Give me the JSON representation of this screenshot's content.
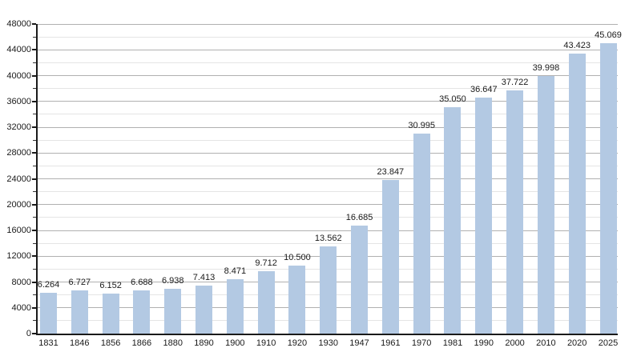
{
  "chart_data": {
    "type": "bar",
    "title": "",
    "xlabel": "",
    "ylabel": "",
    "categories": [
      "1831",
      "1846",
      "1856",
      "1866",
      "1880",
      "1890",
      "1900",
      "1910",
      "1920",
      "1930",
      "1947",
      "1961",
      "1970",
      "1981",
      "1990",
      "2000",
      "2010",
      "2020",
      "2025"
    ],
    "values": [
      6264,
      6727,
      6152,
      6688,
      6938,
      7413,
      8471,
      9712,
      10500,
      13562,
      16685,
      23847,
      30995,
      35050,
      36647,
      37722,
      39998,
      43423,
      45069
    ],
    "value_labels": [
      "6.264",
      "6.727",
      "6.152",
      "6.688",
      "6.938",
      "7.413",
      "8.471",
      "9.712",
      "10.500",
      "13.562",
      "16.685",
      "23.847",
      "30.995",
      "35.050",
      "36.647",
      "37.722",
      "39.998",
      "43.423",
      "45.069"
    ],
    "ylim": [
      0,
      48000
    ],
    "y_major_step": 4000,
    "y_minor_step": 2000,
    "y_tick_labels": [
      "0",
      "4000",
      "8000",
      "12000",
      "16000",
      "20000",
      "24000",
      "28000",
      "32000",
      "36000",
      "40000",
      "44000",
      "48000"
    ],
    "grid": true,
    "legend": "none",
    "bar_color": "#b3c9e3",
    "axis_color": "#1a1a1a",
    "major_grid_color": "#b0b0b0",
    "minor_grid_color": "#e4e4e4",
    "minor_tick_color": "#333333",
    "background_color": "#ffffff"
  }
}
